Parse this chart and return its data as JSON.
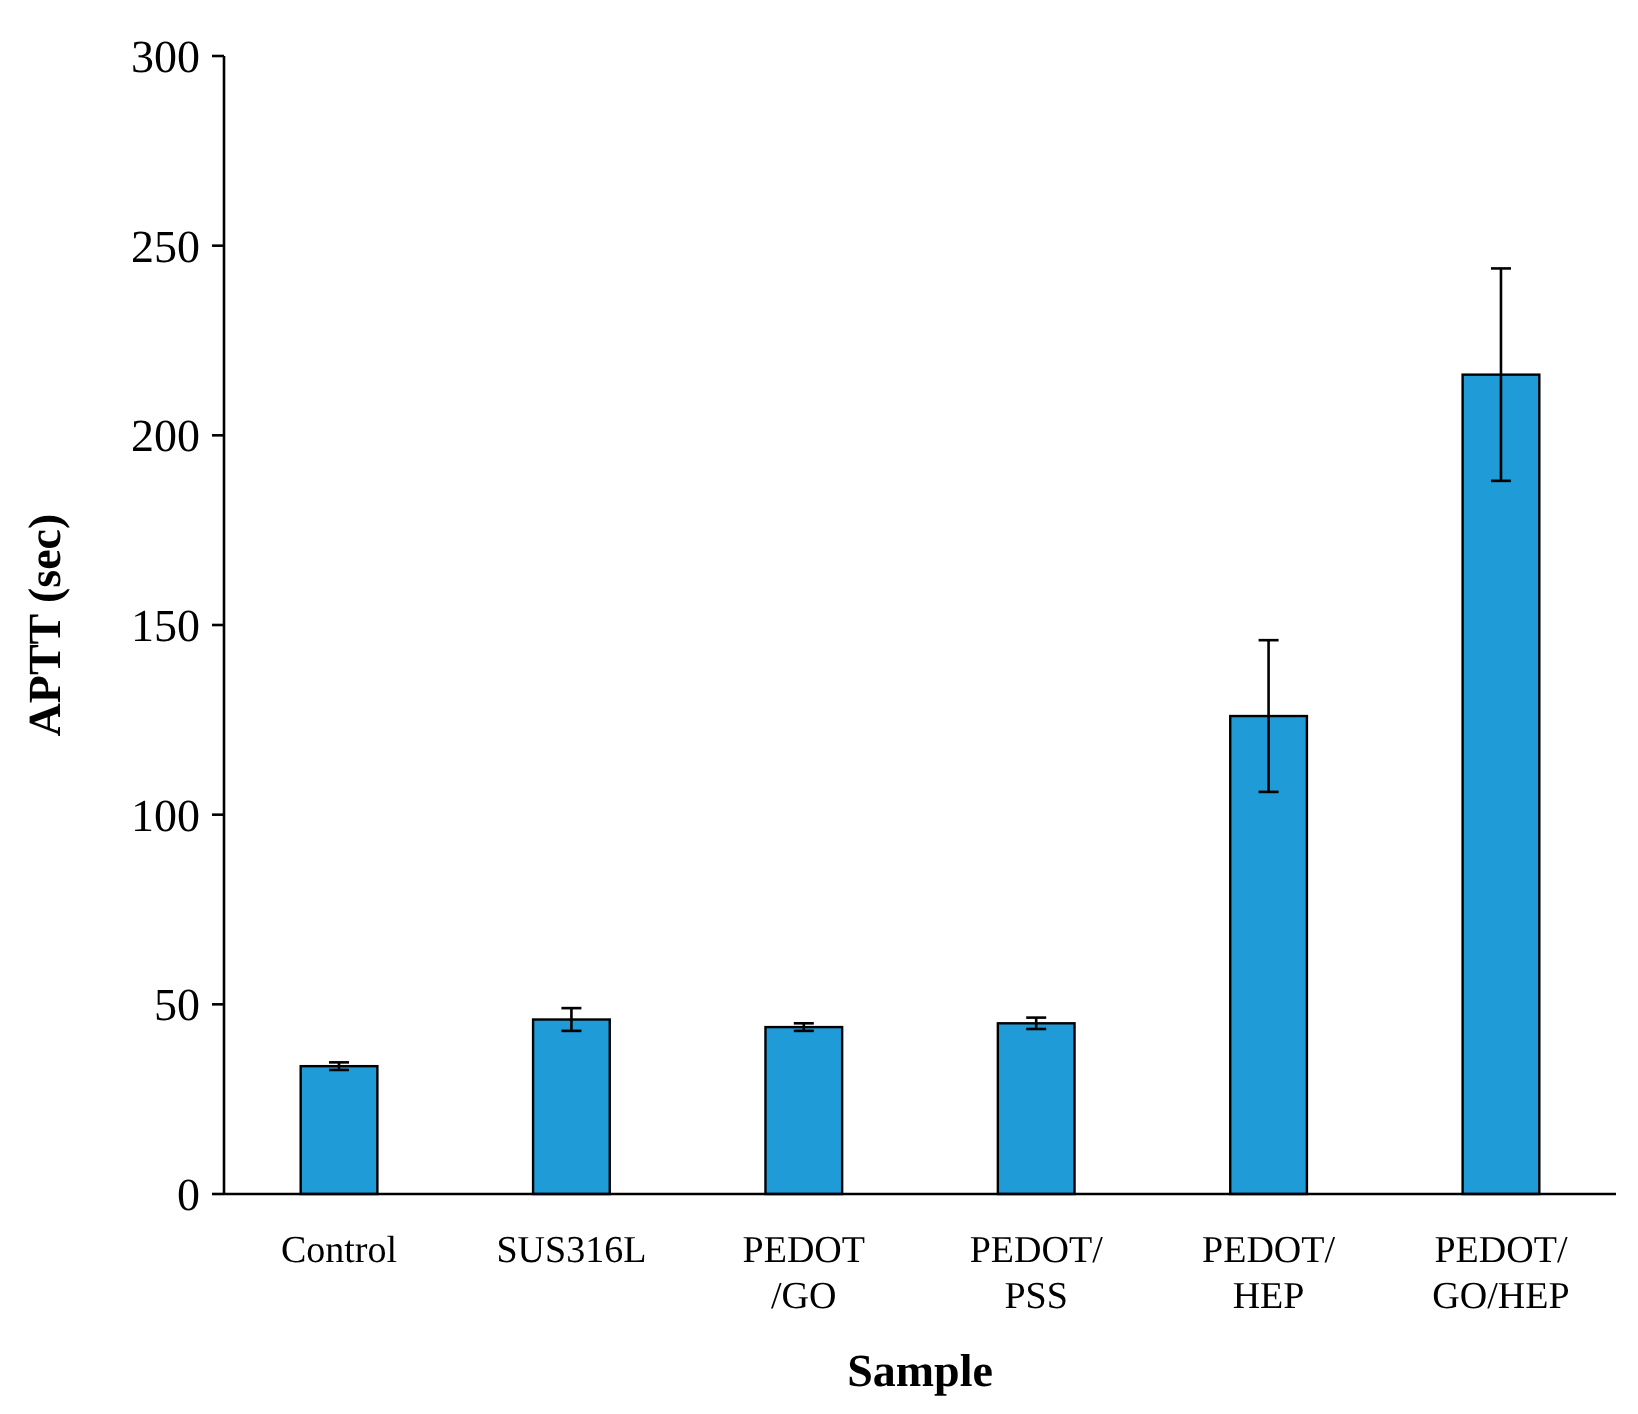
{
  "chart_data": {
    "type": "bar",
    "xlabel": "Sample",
    "ylabel": "APTT (sec)",
    "categories": [
      "Control",
      "SUS316L",
      "PEDOT\n/GO",
      "PEDOT/\nPSS",
      "PEDOT/\nHEP",
      "PEDOT/\nGO/HEP"
    ],
    "values": [
      33.7,
      46,
      44,
      45,
      126,
      216
    ],
    "errors": [
      1,
      3,
      1,
      1.5,
      20,
      28
    ],
    "color": "#1f9bd7",
    "ylim": [
      0,
      300
    ],
    "yticks": [
      0,
      50,
      100,
      150,
      200,
      250,
      300
    ],
    "grid": false
  }
}
